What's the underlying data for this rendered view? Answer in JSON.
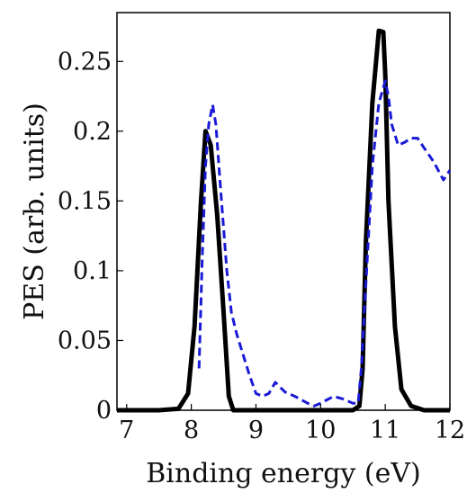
{
  "chart_data": {
    "type": "line",
    "title": "",
    "xlabel": "Binding energy (eV)",
    "ylabel": "PES  (arb. units)",
    "xlim": [
      6.85,
      12.0
    ],
    "ylim": [
      0,
      0.285
    ],
    "xticks": [
      7,
      8,
      9,
      10,
      11,
      12
    ],
    "xtick_labels": [
      "7",
      "8",
      "9",
      "10",
      "11",
      "12"
    ],
    "yticks": [
      0,
      0.05,
      0.1,
      0.15,
      0.2,
      0.25
    ],
    "ytick_labels": [
      "0",
      "0.05",
      "0.1",
      "0.15",
      "0.2",
      "0.25"
    ],
    "grid": false,
    "series": [
      {
        "style": "solid",
        "color": "#000000",
        "x": [
          6.85,
          7.5,
          7.8,
          7.95,
          8.05,
          8.15,
          8.22,
          8.3,
          8.4,
          8.5,
          8.58,
          8.65,
          9.0,
          10.0,
          10.5,
          10.6,
          10.65,
          10.7,
          10.8,
          10.9,
          10.97,
          11.0,
          11.05,
          11.15,
          11.25,
          11.4,
          11.6,
          12.0
        ],
        "y": [
          0.0,
          0.0,
          0.001,
          0.012,
          0.06,
          0.15,
          0.2,
          0.19,
          0.14,
          0.07,
          0.01,
          0.0,
          0.0,
          0.0,
          0.0,
          0.003,
          0.03,
          0.12,
          0.22,
          0.272,
          0.271,
          0.24,
          0.15,
          0.06,
          0.015,
          0.003,
          0.0,
          0.0
        ]
      },
      {
        "style": "dashed",
        "color": "#1a1ad6",
        "x": [
          8.12,
          8.17,
          8.22,
          8.27,
          8.33,
          8.38,
          8.45,
          8.55,
          8.62,
          8.7,
          8.8,
          8.9,
          9.0,
          9.1,
          9.2,
          9.3,
          9.45,
          9.6,
          9.8,
          9.9,
          10.0,
          10.2,
          10.35,
          10.5,
          10.58,
          10.63,
          10.7,
          10.8,
          10.9,
          11.0,
          11.05,
          11.1,
          11.2,
          11.3,
          11.4,
          11.5,
          11.6,
          11.75,
          11.9,
          12.0
        ],
        "y": [
          0.03,
          0.11,
          0.175,
          0.205,
          0.219,
          0.205,
          0.16,
          0.1,
          0.07,
          0.055,
          0.04,
          0.025,
          0.012,
          0.01,
          0.012,
          0.02,
          0.013,
          0.01,
          0.005,
          0.003,
          0.005,
          0.01,
          0.008,
          0.005,
          0.005,
          0.03,
          0.09,
          0.175,
          0.22,
          0.236,
          0.225,
          0.205,
          0.19,
          0.192,
          0.195,
          0.195,
          0.188,
          0.178,
          0.165,
          0.172
        ]
      }
    ]
  }
}
